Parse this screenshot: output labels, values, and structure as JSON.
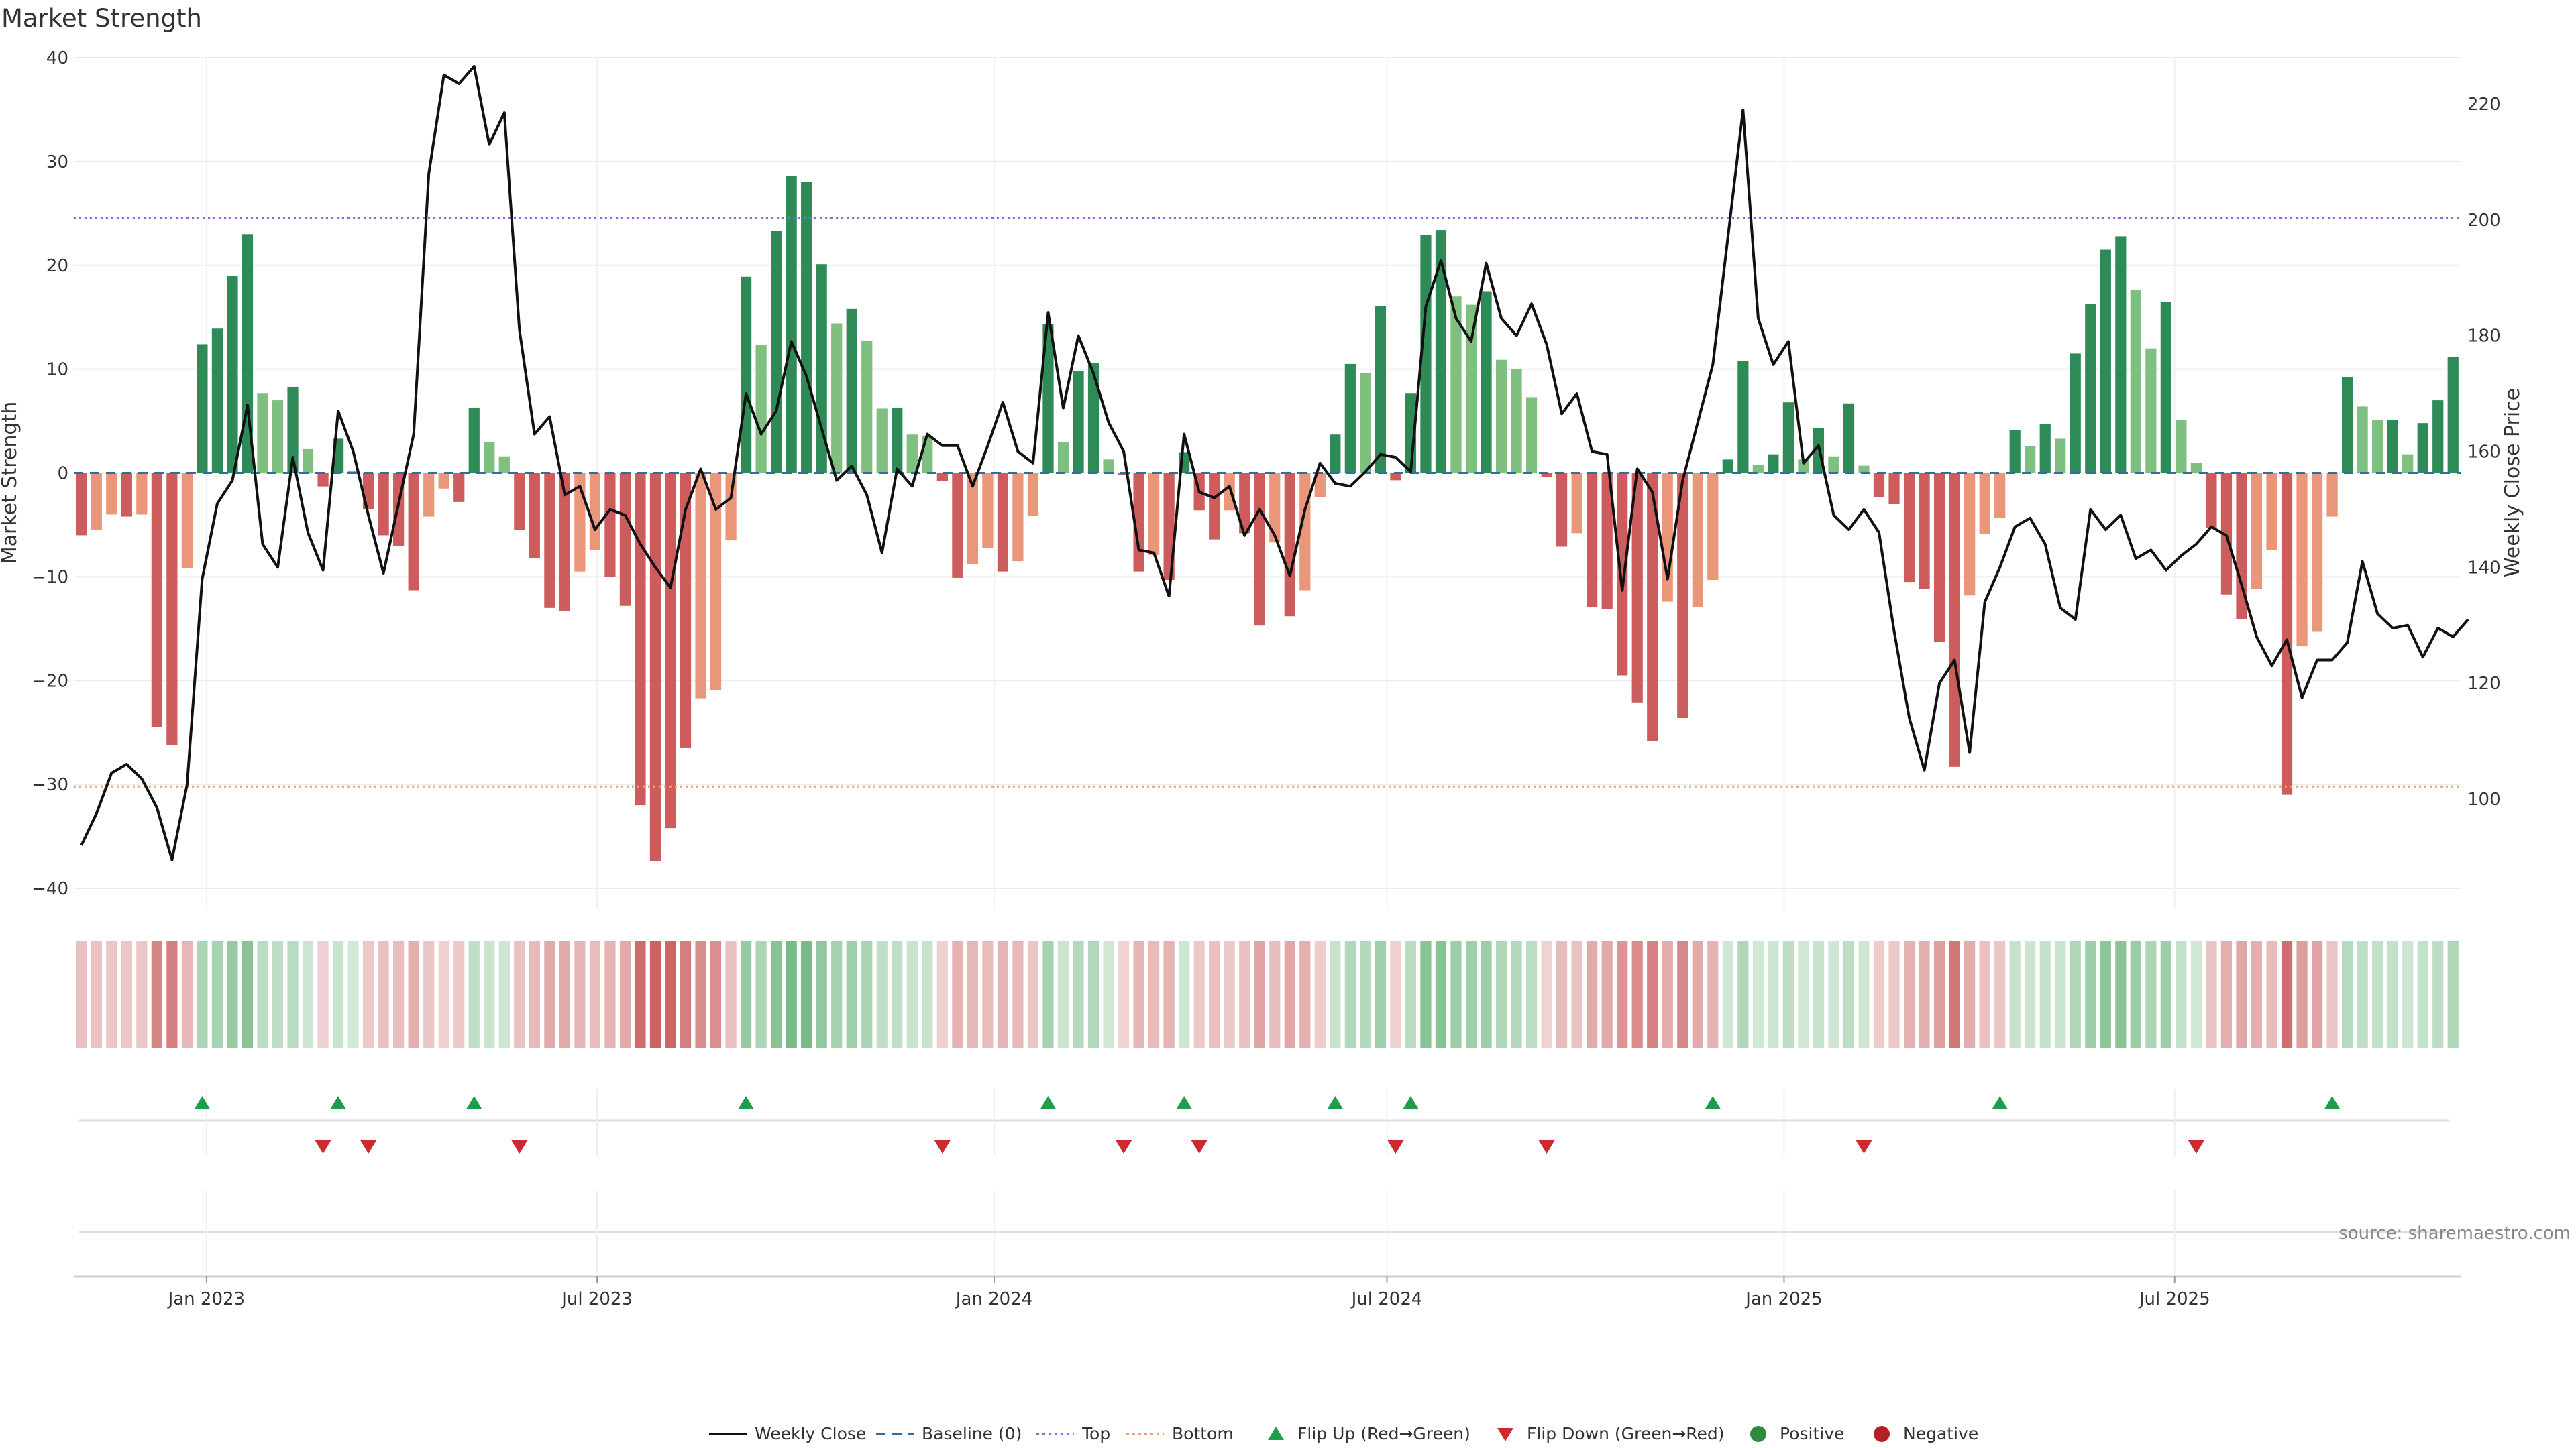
{
  "chart_data": {
    "type": "bar",
    "title": "Market Strength",
    "ylabel_left": "Market Strength",
    "ylabel_right": "Weekly Close Price",
    "ylim_left": [
      -42,
      40
    ],
    "yticks_left": [
      -40,
      -30,
      -20,
      -10,
      0,
      10,
      20,
      30,
      40
    ],
    "ylim_right": [
      81,
      228
    ],
    "yticks_right": [
      100,
      120,
      140,
      160,
      180,
      200,
      220
    ],
    "top_level": 24.6,
    "bottom_level": -30.2,
    "baseline": 0,
    "x_start": "2022-11-04",
    "week_step_days": 7,
    "x_ticks": [
      {
        "date": "2023-01-01",
        "label": "Jan 2023"
      },
      {
        "date": "2023-07-01",
        "label": "Jul 2023"
      },
      {
        "date": "2024-01-01",
        "label": "Jan 2024"
      },
      {
        "date": "2024-07-01",
        "label": "Jul 2024"
      },
      {
        "date": "2025-01-01",
        "label": "Jan 2025"
      },
      {
        "date": "2025-07-01",
        "label": "Jul 2025"
      }
    ],
    "strength": [
      -6,
      -5.5,
      -4,
      -4.2,
      -4,
      -24.5,
      -26.2,
      -9.2,
      12.4,
      13.9,
      19,
      23,
      7.7,
      7,
      8.3,
      2.3,
      -1.3,
      3.3,
      0.2,
      -3.5,
      -6,
      -7,
      -11.3,
      -4.2,
      -1.5,
      -2.8,
      6.3,
      3,
      1.6,
      -5.5,
      -8.2,
      -13,
      -13.3,
      -9.5,
      -7.4,
      -10,
      -12.8,
      -32,
      -37.4,
      -34.2,
      -26.5,
      -21.7,
      -20.9,
      -6.5,
      18.9,
      12.3,
      23.3,
      28.6,
      28,
      20.1,
      14.4,
      15.8,
      12.7,
      6.2,
      6.3,
      3.7,
      3.6,
      -0.8,
      -10.1,
      -8.8,
      -7.2,
      -9.5,
      -8.5,
      -4.1,
      14.3,
      3,
      9.8,
      10.6,
      1.3,
      -0.2,
      -9.5,
      -7.9,
      -10.3,
      2,
      -3.6,
      -6.4,
      -3.6,
      -5.8,
      -14.7,
      -6.7,
      -13.8,
      -11.3,
      -2.3,
      3.7,
      10.5,
      9.6,
      16.1,
      -0.7,
      7.7,
      22.9,
      23.4,
      17,
      16.2,
      17.5,
      10.9,
      10,
      7.3,
      -0.4,
      -7.1,
      -5.8,
      -12.9,
      -13.1,
      -19.5,
      -22.1,
      -25.8,
      -12.4,
      -23.6,
      -12.9,
      -10.3,
      1.3,
      10.8,
      0.8,
      1.8,
      6.8,
      1.3,
      4.3,
      1.6,
      6.7,
      0.7,
      -2.3,
      -3,
      -10.5,
      -11.2,
      -16.3,
      -28.3,
      -11.8,
      -5.9,
      -4.3,
      4.1,
      2.6,
      4.7,
      3.3,
      11.5,
      16.3,
      21.5,
      22.8,
      17.6,
      12,
      16.5,
      5.1,
      1,
      -5.3,
      -11.7,
      -14.1,
      -11.2,
      -7.4,
      -31,
      -16.7,
      -15.3,
      -4.2,
      9.2,
      6.4,
      5.1,
      5.1,
      1.8,
      4.8,
      7,
      11.2
    ],
    "close": [
      92,
      97.5,
      104.5,
      106,
      103.5,
      98.5,
      89.5,
      102.5,
      138,
      151,
      155,
      168,
      144,
      140,
      159,
      146,
      139.5,
      167,
      160,
      149,
      139,
      151,
      163,
      208,
      225,
      223.5,
      226.5,
      213,
      218.5,
      181,
      163,
      166,
      152.5,
      154,
      146.5,
      150,
      149,
      144,
      140,
      136.5,
      150,
      157,
      150,
      152,
      170,
      163,
      167,
      179,
      173,
      164,
      155,
      157.5,
      152.5,
      142.5,
      157,
      154,
      163,
      161,
      161,
      154,
      161,
      168.5,
      160,
      158,
      184,
      167.5,
      180,
      173.5,
      165,
      160,
      143,
      142.5,
      135,
      163,
      153,
      152,
      154,
      145.5,
      150,
      145.5,
      138.5,
      150,
      158,
      154.5,
      154,
      156.5,
      159.5,
      159,
      156.5,
      185,
      193,
      183,
      179,
      192.5,
      183,
      180,
      185.5,
      178.5,
      166.5,
      170,
      160,
      159.5,
      136,
      157,
      153,
      138,
      155,
      165,
      175,
      197,
      219,
      183,
      175,
      179,
      158,
      161,
      149,
      146.5,
      150,
      146,
      129,
      114,
      105,
      120,
      124,
      108,
      134,
      140,
      147,
      148.5,
      144,
      133,
      131,
      150,
      146.5,
      149,
      141.5,
      143,
      139.5,
      142,
      144,
      147,
      145.5,
      137,
      128,
      123,
      127.5,
      117.5,
      124,
      124,
      127,
      141,
      132,
      129.5,
      130,
      124.5,
      129.5,
      128,
      131
    ],
    "strip_start_offset": 0,
    "flips_up": [
      8,
      17,
      26,
      44,
      64,
      73,
      83,
      88,
      108,
      127,
      149
    ],
    "flips_down": [
      16,
      19,
      29,
      57,
      69,
      74,
      87,
      97,
      118,
      140
    ],
    "series": [
      {
        "name": "Weekly Close",
        "color": "#111111"
      },
      {
        "name": "Baseline (0)",
        "color": "#2f6fa0"
      },
      {
        "name": "Top",
        "color": "#a55be0"
      },
      {
        "name": "Bottom",
        "color": "#f0a070"
      },
      {
        "name": "Flip Up (Red→Green)",
        "color": "#1e9e4a"
      },
      {
        "name": "Flip Down (Green→Red)",
        "color": "#cc2a30"
      },
      {
        "name": "Positive",
        "color": "#2e8b3e"
      },
      {
        "name": "Negative",
        "color": "#b22222"
      }
    ],
    "grid": true,
    "legend_position": "bottom-center",
    "source": "source: sharemaestro.com"
  }
}
